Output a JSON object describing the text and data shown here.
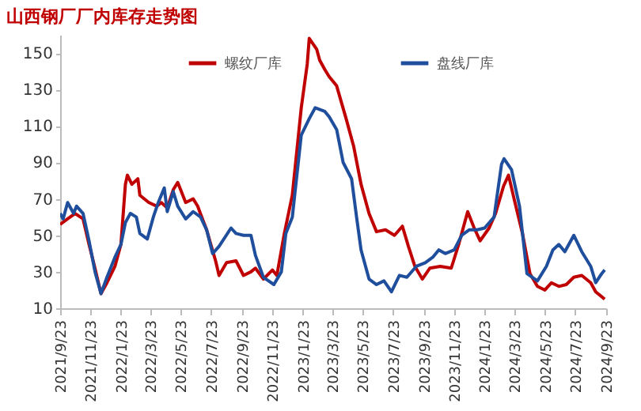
{
  "chart_data": {
    "type": "line",
    "title": "山西钢厂厂内库存走势图",
    "legend": "top",
    "grid": false,
    "line_style": "solid",
    "xlim": [
      "2021-09-23",
      "2024-09-23"
    ],
    "ylim": [
      10,
      160
    ],
    "yticks": [
      10,
      30,
      50,
      70,
      90,
      110,
      130,
      150
    ],
    "xticks": [
      {
        "value": "2021-09-23",
        "label": "2021/9/23"
      },
      {
        "value": "2021-11-23",
        "label": "2021/11/23"
      },
      {
        "value": "2022-01-23",
        "label": "2022/1/23"
      },
      {
        "value": "2022-03-23",
        "label": "2022/3/23"
      },
      {
        "value": "2022-05-23",
        "label": "2022/5/23"
      },
      {
        "value": "2022-07-23",
        "label": "2022/7/23"
      },
      {
        "value": "2022-09-23",
        "label": "2022/9/23"
      },
      {
        "value": "2022-11-23",
        "label": "2022/11/23"
      },
      {
        "value": "2023-01-23",
        "label": "2023/1/23"
      },
      {
        "value": "2023-03-23",
        "label": "2023/3/23"
      },
      {
        "value": "2023-05-23",
        "label": "2023/5/23"
      },
      {
        "value": "2023-07-23",
        "label": "2023/7/23"
      },
      {
        "value": "2023-09-23",
        "label": "2023/9/23"
      },
      {
        "value": "2023-11-23",
        "label": "2023/11/23"
      },
      {
        "value": "2024-01-23",
        "label": "2024/1/23"
      },
      {
        "value": "2024-03-23",
        "label": "2024/3/23"
      },
      {
        "value": "2024-05-23",
        "label": "2024/5/23"
      },
      {
        "value": "2024-07-23",
        "label": "2024/7/23"
      },
      {
        "value": "2024-09-23",
        "label": "2024/9/23"
      }
    ],
    "series": [
      {
        "name": "螺纹厂库",
        "color": "#c00000",
        "x": [
          "2021-09-23",
          "2021-10-08",
          "2021-10-23",
          "2021-11-08",
          "2021-11-20",
          "2021-12-01",
          "2021-12-14",
          "2021-12-26",
          "2022-01-11",
          "2022-01-23",
          "2022-02-01",
          "2022-02-05",
          "2022-02-14",
          "2022-02-26",
          "2022-03-02",
          "2022-03-20",
          "2022-04-05",
          "2022-04-14",
          "2022-04-26",
          "2022-05-08",
          "2022-05-17",
          "2022-06-02",
          "2022-06-17",
          "2022-06-26",
          "2022-07-14",
          "2022-08-01",
          "2022-08-08",
          "2022-08-23",
          "2022-09-11",
          "2022-09-26",
          "2022-10-11",
          "2022-10-20",
          "2022-11-05",
          "2022-11-23",
          "2022-12-02",
          "2022-12-17",
          "2023-01-02",
          "2023-01-20",
          "2023-02-01",
          "2023-02-05",
          "2023-02-20",
          "2023-02-26",
          "2023-03-08",
          "2023-03-17",
          "2023-04-01",
          "2023-04-20",
          "2023-05-05",
          "2023-05-20",
          "2023-06-05",
          "2023-06-20",
          "2023-07-08",
          "2023-07-26",
          "2023-08-11",
          "2023-08-23",
          "2023-09-05",
          "2023-09-20",
          "2023-10-05",
          "2023-10-26",
          "2023-11-17",
          "2023-12-02",
          "2023-12-20",
          "2024-01-02",
          "2024-01-14",
          "2024-02-01",
          "2024-02-14",
          "2024-03-01",
          "2024-03-11",
          "2024-03-23",
          "2024-04-08",
          "2024-04-23",
          "2024-05-08",
          "2024-05-23",
          "2024-06-05",
          "2024-06-20",
          "2024-07-05",
          "2024-07-20",
          "2024-08-05",
          "2024-08-23",
          "2024-09-02",
          "2024-09-20"
        ],
        "values": [
          56,
          59,
          62,
          59,
          45,
          33,
          18,
          24,
          33,
          45,
          78,
          83,
          78,
          81,
          72,
          68,
          66,
          68,
          65,
          75,
          79,
          68,
          70,
          66,
          53,
          36,
          28,
          35,
          36,
          28,
          30,
          32,
          26,
          31,
          28,
          51,
          72,
          120,
          144,
          158,
          152,
          146,
          141,
          137,
          132,
          114,
          99,
          78,
          62,
          52,
          53,
          50,
          55,
          44,
          33,
          26,
          32,
          33,
          32,
          45,
          63,
          54,
          47,
          54,
          62,
          77,
          83,
          69,
          51,
          29,
          22,
          20,
          24,
          22,
          23,
          27,
          28,
          24,
          19,
          15
        ]
      },
      {
        "name": "盘线厂库",
        "color": "#1f4e9c",
        "x": [
          "2021-09-23",
          "2021-09-29",
          "2021-10-08",
          "2021-10-20",
          "2021-10-26",
          "2021-11-08",
          "2021-11-20",
          "2021-12-02",
          "2021-12-14",
          "2021-12-26",
          "2022-01-11",
          "2022-01-23",
          "2022-02-01",
          "2022-02-11",
          "2022-02-23",
          "2022-03-02",
          "2022-03-17",
          "2022-03-29",
          "2022-04-08",
          "2022-04-20",
          "2022-04-26",
          "2022-05-08",
          "2022-05-17",
          "2022-06-02",
          "2022-06-17",
          "2022-07-02",
          "2022-07-14",
          "2022-07-26",
          "2022-08-08",
          "2022-09-01",
          "2022-09-11",
          "2022-09-26",
          "2022-10-11",
          "2022-10-20",
          "2022-11-05",
          "2022-11-26",
          "2022-12-11",
          "2022-12-20",
          "2023-01-02",
          "2023-01-20",
          "2023-02-05",
          "2023-02-17",
          "2023-03-08",
          "2023-03-17",
          "2023-04-01",
          "2023-04-14",
          "2023-05-01",
          "2023-05-11",
          "2023-05-20",
          "2023-06-05",
          "2023-06-20",
          "2023-07-05",
          "2023-07-20",
          "2023-08-05",
          "2023-08-20",
          "2023-09-08",
          "2023-09-26",
          "2023-10-11",
          "2023-10-23",
          "2023-11-05",
          "2023-11-23",
          "2023-12-08",
          "2023-12-23",
          "2024-01-08",
          "2024-01-23",
          "2024-02-11",
          "2024-02-26",
          "2024-03-02",
          "2024-03-17",
          "2024-04-02",
          "2024-04-17",
          "2024-05-08",
          "2024-05-26",
          "2024-06-08",
          "2024-06-20",
          "2024-07-02",
          "2024-07-20",
          "2024-08-05",
          "2024-08-23",
          "2024-09-02",
          "2024-09-14",
          "2024-09-20"
        ],
        "values": [
          62,
          59,
          68,
          62,
          66,
          62,
          47,
          30,
          18,
          27,
          38,
          45,
          57,
          62,
          60,
          51,
          48,
          60,
          68,
          76,
          63,
          74,
          66,
          59,
          63,
          60,
          53,
          40,
          44,
          54,
          51,
          50,
          50,
          39,
          27,
          23,
          30,
          51,
          60,
          105,
          114,
          120,
          118,
          115,
          108,
          90,
          81,
          60,
          42,
          26,
          23,
          25,
          19,
          28,
          27,
          33,
          35,
          38,
          42,
          40,
          42,
          50,
          53,
          53,
          54,
          60,
          89,
          92,
          86,
          66,
          29,
          25,
          33,
          42,
          45,
          41,
          50,
          41,
          33,
          24,
          29,
          31
        ]
      }
    ]
  }
}
